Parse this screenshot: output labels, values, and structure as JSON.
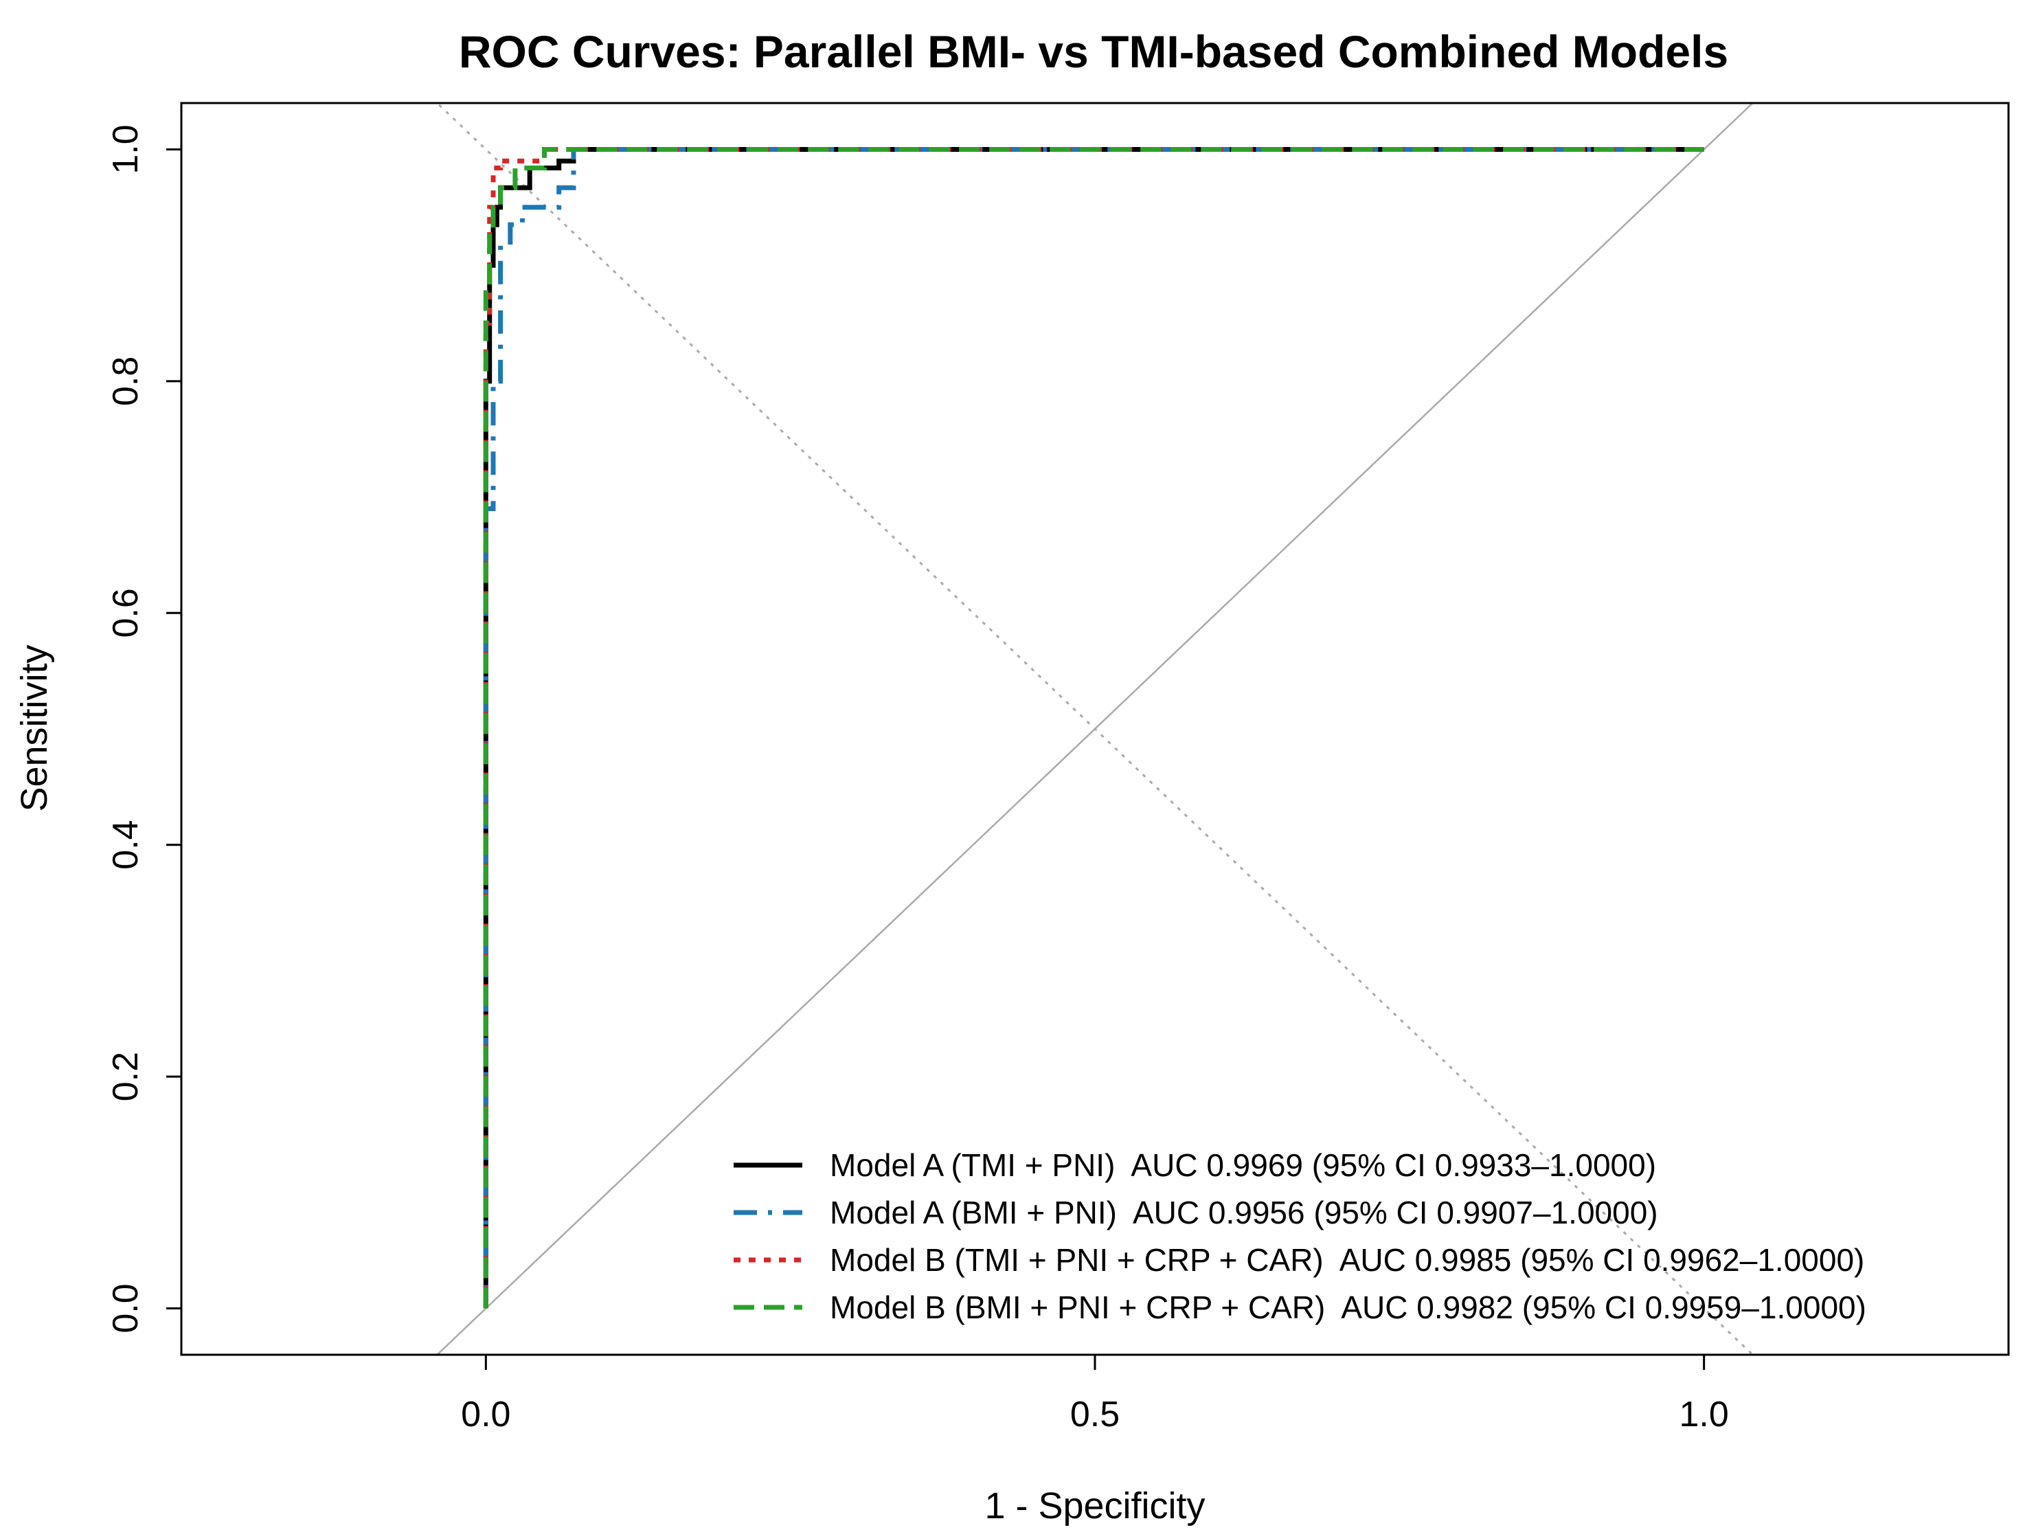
{
  "chart_data": {
    "type": "line",
    "title": "ROC Curves: Parallel BMI- vs TMI-based Combined Models",
    "xlabel": "1 - Specificity",
    "ylabel": "Sensitivity",
    "xlim": [
      -0.25,
      1.25
    ],
    "ylim": [
      -0.04,
      1.04
    ],
    "x_ticks": [
      0.0,
      0.5,
      1.0
    ],
    "x_tick_labels": [
      "0.0",
      "0.5",
      "1.0"
    ],
    "y_ticks": [
      0.0,
      0.2,
      0.4,
      0.6,
      0.8,
      1.0
    ],
    "y_tick_labels": [
      "0.0",
      "0.2",
      "0.4",
      "0.6",
      "0.8",
      "1.0"
    ],
    "grid": false,
    "legend_position": "bottom-right",
    "reference_lines": [
      {
        "name": "chance-diagonal",
        "style": "solid",
        "color": "#aaaaaa",
        "x": [
          -0.25,
          1.25
        ],
        "y": [
          -0.25,
          1.25
        ]
      },
      {
        "name": "anti-diagonal",
        "style": "dotted",
        "color": "#aaaaaa",
        "x": [
          -0.25,
          1.25
        ],
        "y": [
          1.25,
          -0.25
        ]
      }
    ],
    "series": [
      {
        "name": "Model A (TMI + PNI)",
        "legend_label": "Model A (TMI + PNI)  AUC 0.9969 (95% CI 0.9933–1.0000)",
        "color": "#000000",
        "dash": "solid",
        "x": [
          0.0,
          0.0,
          0.003,
          0.003,
          0.006,
          0.006,
          0.009,
          0.009,
          0.012,
          0.012,
          0.036,
          0.036,
          0.06,
          0.06,
          0.072,
          0.072,
          0.3,
          0.7,
          1.0
        ],
        "y": [
          0.0,
          0.8,
          0.8,
          0.9,
          0.9,
          0.935,
          0.935,
          0.95,
          0.95,
          0.967,
          0.967,
          0.984,
          0.984,
          0.99,
          0.99,
          1.0,
          1.0,
          1.0,
          1.0
        ]
      },
      {
        "name": "Model A (BMI + PNI)",
        "legend_label": "Model A (BMI + PNI)  AUC 0.9956 (95% CI 0.9907–1.0000)",
        "color": "#1f77b4",
        "dash": "dashdot",
        "x": [
          0.0,
          0.0,
          0.006,
          0.006,
          0.012,
          0.012,
          0.02,
          0.02,
          0.03,
          0.03,
          0.06,
          0.06,
          0.072,
          0.072,
          0.3,
          0.7,
          1.0
        ],
        "y": [
          0.0,
          0.69,
          0.69,
          0.8,
          0.8,
          0.917,
          0.917,
          0.935,
          0.935,
          0.95,
          0.95,
          0.967,
          0.967,
          1.0,
          1.0,
          1.0,
          1.0
        ]
      },
      {
        "name": "Model B (TMI + PNI + CRP + CAR)",
        "legend_label": "Model B (TMI + PNI + CRP + CAR)  AUC 0.9985 (95% CI 0.9962–1.0000)",
        "color": "#d62728",
        "dash": "dotted",
        "x": [
          0.0,
          0.0,
          0.003,
          0.003,
          0.006,
          0.006,
          0.012,
          0.012,
          0.048,
          0.048,
          0.3,
          0.7,
          1.0
        ],
        "y": [
          0.0,
          0.85,
          0.85,
          0.95,
          0.95,
          0.984,
          0.984,
          0.99,
          0.99,
          1.0,
          1.0,
          1.0,
          1.0
        ]
      },
      {
        "name": "Model B (BMI + PNI + CRP + CAR)",
        "legend_label": "Model B (BMI + PNI + CRP + CAR)  AUC 0.9982 (95% CI 0.9959–1.0000)",
        "color": "#2ca02c",
        "dash": "longdash",
        "x": [
          0.0,
          0.0,
          0.003,
          0.003,
          0.006,
          0.006,
          0.012,
          0.012,
          0.024,
          0.024,
          0.048,
          0.048,
          0.3,
          0.7,
          1.0
        ],
        "y": [
          0.0,
          0.88,
          0.88,
          0.93,
          0.93,
          0.95,
          0.95,
          0.967,
          0.967,
          0.984,
          0.984,
          1.0,
          1.0,
          1.0,
          1.0
        ]
      }
    ]
  }
}
